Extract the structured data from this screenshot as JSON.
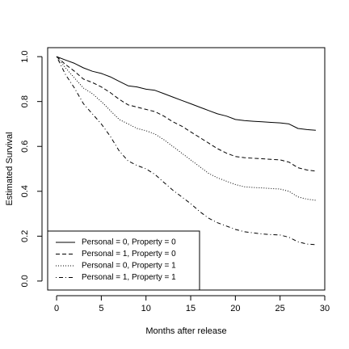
{
  "chart_data": {
    "type": "line",
    "title": "",
    "xlabel": "Months after release",
    "ylabel": "Estimated Survival",
    "xlim": [
      -1,
      30
    ],
    "ylim": [
      -0.04,
      1.04
    ],
    "xticks": [
      0,
      5,
      10,
      15,
      20,
      25,
      30
    ],
    "yticks": [
      0.0,
      0.2,
      0.4,
      0.6,
      0.8,
      1.0
    ],
    "xtick_labels": [
      "0",
      "5",
      "10",
      "15",
      "20",
      "25",
      "30"
    ],
    "ytick_labels": [
      "0.0",
      "0.2",
      "0.4",
      "0.6",
      "0.8",
      "1.0"
    ],
    "grid": false,
    "legend_position": "bottom-left",
    "series": [
      {
        "name": "Personal = 0, Property = 0",
        "line_style": "solid",
        "x": [
          0,
          1,
          2,
          3,
          4,
          5,
          6,
          7,
          8,
          9,
          10,
          11,
          12,
          13,
          14,
          15,
          16,
          17,
          18,
          19,
          20,
          21,
          22,
          23,
          24,
          25,
          26,
          27,
          28,
          29
        ],
        "y": [
          1.0,
          0.985,
          0.97,
          0.95,
          0.935,
          0.925,
          0.91,
          0.89,
          0.87,
          0.865,
          0.855,
          0.85,
          0.835,
          0.82,
          0.805,
          0.79,
          0.775,
          0.76,
          0.745,
          0.735,
          0.72,
          0.715,
          0.712,
          0.71,
          0.707,
          0.705,
          0.7,
          0.68,
          0.675,
          0.672
        ]
      },
      {
        "name": "Personal = 1, Property = 0",
        "line_style": "dashed",
        "x": [
          0,
          1,
          2,
          3,
          4,
          5,
          6,
          7,
          8,
          9,
          10,
          11,
          12,
          13,
          14,
          15,
          16,
          17,
          18,
          19,
          20,
          21,
          22,
          23,
          24,
          25,
          26,
          27,
          28,
          29
        ],
        "y": [
          1.0,
          0.965,
          0.935,
          0.9,
          0.885,
          0.865,
          0.84,
          0.81,
          0.785,
          0.775,
          0.765,
          0.755,
          0.735,
          0.71,
          0.69,
          0.665,
          0.64,
          0.615,
          0.59,
          0.57,
          0.555,
          0.55,
          0.547,
          0.545,
          0.542,
          0.54,
          0.53,
          0.505,
          0.495,
          0.49
        ]
      },
      {
        "name": "Personal = 0, Property = 1",
        "line_style": "dotted",
        "x": [
          0,
          1,
          2,
          3,
          4,
          5,
          6,
          7,
          8,
          9,
          10,
          11,
          12,
          13,
          14,
          15,
          16,
          17,
          18,
          19,
          20,
          21,
          22,
          23,
          24,
          25,
          26,
          27,
          28,
          29
        ],
        "y": [
          1.0,
          0.95,
          0.905,
          0.86,
          0.835,
          0.8,
          0.76,
          0.72,
          0.7,
          0.68,
          0.67,
          0.655,
          0.63,
          0.6,
          0.57,
          0.54,
          0.51,
          0.48,
          0.46,
          0.445,
          0.43,
          0.42,
          0.417,
          0.415,
          0.412,
          0.41,
          0.4,
          0.375,
          0.365,
          0.36
        ]
      },
      {
        "name": "Personal = 1, Property = 1",
        "line_style": "dashdot",
        "x": [
          0,
          1,
          2,
          3,
          4,
          5,
          6,
          7,
          8,
          9,
          10,
          11,
          12,
          13,
          14,
          15,
          16,
          17,
          18,
          19,
          20,
          21,
          22,
          23,
          24,
          25,
          26,
          27,
          28,
          29
        ],
        "y": [
          1.0,
          0.92,
          0.86,
          0.79,
          0.745,
          0.7,
          0.645,
          0.58,
          0.535,
          0.515,
          0.5,
          0.475,
          0.44,
          0.405,
          0.375,
          0.345,
          0.31,
          0.28,
          0.26,
          0.245,
          0.23,
          0.22,
          0.215,
          0.21,
          0.207,
          0.205,
          0.195,
          0.175,
          0.165,
          0.162
        ]
      }
    ]
  }
}
